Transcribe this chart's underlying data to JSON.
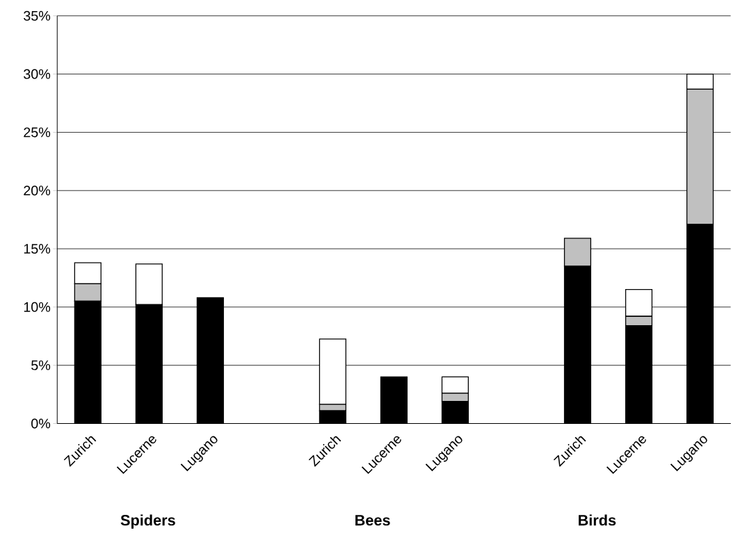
{
  "chart_data": {
    "type": "bar",
    "stacked": true,
    "categories": [
      "Zurich",
      "Lucerne",
      "Lugano",
      null,
      "Zurich",
      "Lucerne",
      "Lugano",
      null,
      "Zurich",
      "Lucerne",
      "Lugano"
    ],
    "series": [
      {
        "color": "#000000",
        "values": [
          10.5,
          10.2,
          10.8,
          null,
          1.1,
          4.0,
          1.9,
          null,
          13.5,
          8.4,
          17.1
        ]
      },
      {
        "color": "#c0c0c0",
        "values": [
          1.5,
          0,
          0,
          null,
          0.55,
          0,
          0.7,
          null,
          2.4,
          0.8,
          11.6
        ]
      },
      {
        "color": "#ffffff",
        "values": [
          1.8,
          3.5,
          0,
          null,
          5.6,
          0,
          1.4,
          null,
          0,
          2.3,
          1.3
        ]
      }
    ],
    "ylim": [
      0,
      35
    ],
    "yticks": [
      {
        "value": 0,
        "label": "0%"
      },
      {
        "value": 5,
        "label": "5%"
      },
      {
        "value": 10,
        "label": "10%"
      },
      {
        "value": 15,
        "label": "15%"
      },
      {
        "value": 20,
        "label": "20%"
      },
      {
        "value": 25,
        "label": "25%"
      },
      {
        "value": 30,
        "label": "30%"
      },
      {
        "value": 35,
        "label": "35%"
      }
    ],
    "grid": "y",
    "annotations": [
      "Spiders",
      "Bees",
      "Birds"
    ]
  }
}
